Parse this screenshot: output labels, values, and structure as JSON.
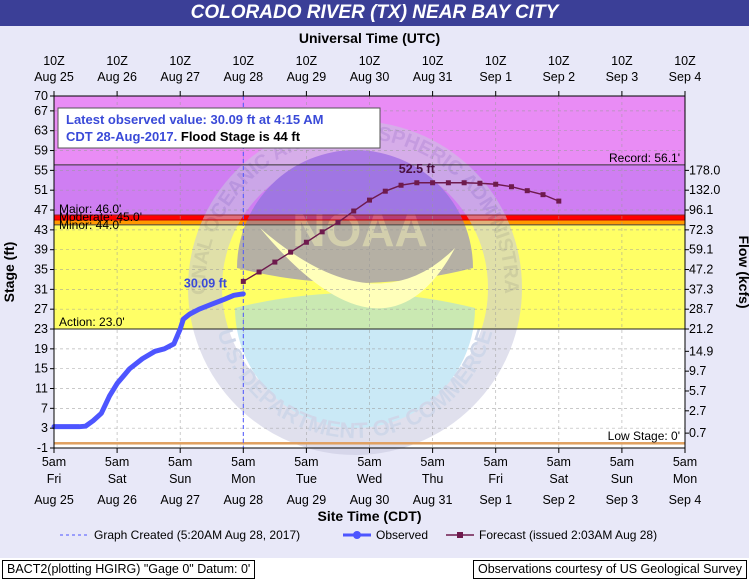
{
  "title": "COLORADO RIVER (TX) NEAR BAY CITY",
  "chart_data": {
    "type": "line",
    "top_axis": {
      "title": "Universal Time (UTC)",
      "ticks": [
        {
          "l1": "10Z",
          "l2": "Aug 25"
        },
        {
          "l1": "10Z",
          "l2": "Aug 26"
        },
        {
          "l1": "10Z",
          "l2": "Aug 27"
        },
        {
          "l1": "10Z",
          "l2": "Aug 28"
        },
        {
          "l1": "10Z",
          "l2": "Aug 29"
        },
        {
          "l1": "10Z",
          "l2": "Aug 30"
        },
        {
          "l1": "10Z",
          "l2": "Aug 31"
        },
        {
          "l1": "10Z",
          "l2": "Sep 1"
        },
        {
          "l1": "10Z",
          "l2": "Sep 2"
        },
        {
          "l1": "10Z",
          "l2": "Sep 3"
        },
        {
          "l1": "10Z",
          "l2": "Sep 4"
        }
      ]
    },
    "bottom_axis": {
      "title": "Site Time (CDT)",
      "ticks": [
        {
          "l1": "5am",
          "l2": "Fri",
          "l3": "Aug 25"
        },
        {
          "l1": "5am",
          "l2": "Sat",
          "l3": "Aug 26"
        },
        {
          "l1": "5am",
          "l2": "Sun",
          "l3": "Aug 27"
        },
        {
          "l1": "5am",
          "l2": "Mon",
          "l3": "Aug 28"
        },
        {
          "l1": "5am",
          "l2": "Tue",
          "l3": "Aug 29"
        },
        {
          "l1": "5am",
          "l2": "Wed",
          "l3": "Aug 30"
        },
        {
          "l1": "5am",
          "l2": "Thu",
          "l3": "Aug 31"
        },
        {
          "l1": "5am",
          "l2": "Fri",
          "l3": "Sep 1"
        },
        {
          "l1": "5am",
          "l2": "Sat",
          "l3": "Sep 2"
        },
        {
          "l1": "5am",
          "l2": "Sun",
          "l3": "Sep 3"
        },
        {
          "l1": "5am",
          "l2": "Mon",
          "l3": "Sep 4"
        }
      ]
    },
    "y_left": {
      "label": "Stage (ft)",
      "ylim": [
        -1,
        70
      ],
      "ticks": [
        -1,
        3,
        7,
        11,
        15,
        19,
        23,
        27,
        31,
        35,
        39,
        43,
        47,
        51,
        55,
        59,
        63,
        67,
        70
      ]
    },
    "y_right": {
      "label": "Flow (kcfs)",
      "ticks": [
        {
          "stage": 2,
          "label": "0.7"
        },
        {
          "stage": 6.5,
          "label": "2.7"
        },
        {
          "stage": 10.5,
          "label": "5.7"
        },
        {
          "stage": 14.5,
          "label": "9.7"
        },
        {
          "stage": 18.5,
          "label": "14.9"
        },
        {
          "stage": 23,
          "label": "21.2"
        },
        {
          "stage": 27,
          "label": "28.7"
        },
        {
          "stage": 31,
          "label": "37.3"
        },
        {
          "stage": 35,
          "label": "47.2"
        },
        {
          "stage": 39,
          "label": "59.1"
        },
        {
          "stage": 43,
          "label": "72.3"
        },
        {
          "stage": 47,
          "label": "96.1"
        },
        {
          "stage": 51,
          "label": "132.0"
        },
        {
          "stage": 55,
          "label": "178.0"
        }
      ]
    },
    "bands": [
      {
        "name": "record",
        "from": 56.1,
        "to": 70,
        "color": "#e98cf5"
      },
      {
        "name": "major",
        "from": 46,
        "to": 56.1,
        "color": "#cf7ef2"
      },
      {
        "name": "moderate",
        "from": 45,
        "to": 46,
        "color": "#ff0000"
      },
      {
        "name": "flood",
        "from": 44,
        "to": 45,
        "color": "#ff9900"
      },
      {
        "name": "action",
        "from": 23,
        "to": 44,
        "color": "#ffff66"
      }
    ],
    "thresholds": [
      {
        "label": "Record: 56.1'",
        "value": 56.1,
        "side": "right"
      },
      {
        "label": "Major: 46.0'",
        "value": 46,
        "side": "left"
      },
      {
        "label": "Moderate: 45.0'",
        "value": 45,
        "side": "left"
      },
      {
        "label": "Minor: 44.0'",
        "value": 44,
        "side": "left"
      },
      {
        "label": "Action: 23.0'",
        "value": 23,
        "side": "left"
      },
      {
        "label": "Low Stage: 0'",
        "value": 0,
        "side": "right"
      }
    ],
    "observed": {
      "name": "Observed",
      "color": "#4d55ff",
      "x_days": [
        0,
        0.25,
        0.4,
        0.5,
        0.62,
        0.75,
        0.88,
        1.0,
        1.2,
        1.4,
        1.6,
        1.75,
        1.9,
        2.0,
        2.05,
        2.15,
        2.3,
        2.5,
        2.7,
        2.85,
        2.95,
        3.0
      ],
      "y": [
        3.3,
        3.3,
        3.3,
        3.4,
        4.5,
        6,
        9.5,
        12,
        15,
        17,
        18.5,
        19,
        20,
        23,
        25,
        26,
        27,
        28,
        29,
        29.8,
        30,
        30.09
      ]
    },
    "forecast": {
      "name": "Forecast (issued 2:03AM Aug 28)",
      "color": "#6e1a4d",
      "x_days": [
        3.0,
        3.25,
        3.5,
        3.75,
        4.0,
        4.25,
        4.5,
        4.75,
        5.0,
        5.25,
        5.5,
        5.75,
        6.0,
        6.25,
        6.5,
        6.75,
        7.0,
        7.25,
        7.5,
        7.75,
        8.0
      ],
      "y": [
        32.6,
        34.5,
        36.5,
        38.5,
        40.5,
        42.6,
        44.5,
        46.8,
        49,
        50.8,
        52,
        52.5,
        52.5,
        52.5,
        52.5,
        52.4,
        52.2,
        51.7,
        50.9,
        50.1,
        48.8
      ]
    },
    "graph_created_x_days": 3.0,
    "annotations": [
      {
        "text": "30.09 ft",
        "x_days": 2.4,
        "y": 32
      },
      {
        "text": "52.5 ft",
        "x_days": 5.75,
        "y": 54.5
      }
    ],
    "info_box": {
      "line1": "Latest observed value: 30.09 ft at 4:15 AM",
      "line2_blue": "CDT 28-Aug-2017.",
      "line2_black": "Flood Stage is 44 ft"
    },
    "watermark_top": "NATIONAL OCEANIC AND ATMOSPHERIC ADMINISTRATION",
    "watermark_bottom": "U.S. DEPARTMENT OF COMMERCE",
    "watermark_center": "NOAA",
    "legend": [
      {
        "kind": "dashed",
        "label": "Graph Created (5:20AM Aug 28, 2017)",
        "color": "#4d55ff"
      },
      {
        "kind": "observed",
        "label": "Observed",
        "color": "#4d55ff"
      },
      {
        "kind": "forecast",
        "label": "Forecast (issued 2:03AM Aug 28)",
        "color": "#6e1a4d"
      }
    ]
  },
  "footer": {
    "left": "BACT2(plotting HGIRG) \"Gage 0\" Datum: 0'",
    "right": "Observations courtesy of US Geological Survey"
  }
}
